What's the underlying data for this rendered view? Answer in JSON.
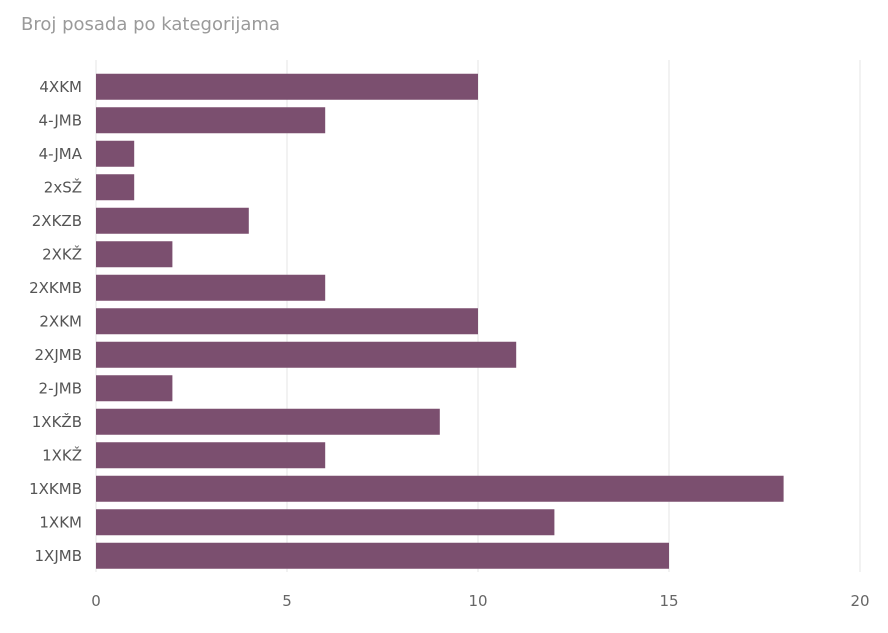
{
  "chart_data": {
    "type": "bar",
    "orientation": "horizontal",
    "title": "Broj posada po kategorijama",
    "categories": [
      "4XKM",
      "4-JMB",
      "4-JMA",
      "2xSŽ",
      "2XKZB",
      "2XKŽ",
      "2XKMB",
      "2XKM",
      "2XJMB",
      "2-JMB",
      "1XKŽB",
      "1XKŽ",
      "1XKMB",
      "1XKM",
      "1XJMB"
    ],
    "values": [
      10,
      6,
      1,
      1,
      4,
      2,
      6,
      10,
      11,
      2,
      9,
      6,
      18,
      12,
      15
    ],
    "xlim": [
      0,
      20
    ],
    "xticks": [
      0,
      5,
      10,
      15,
      20
    ],
    "grid": true,
    "bar_color": "#7b4f6f",
    "grid_color": "#e6e6e6"
  }
}
